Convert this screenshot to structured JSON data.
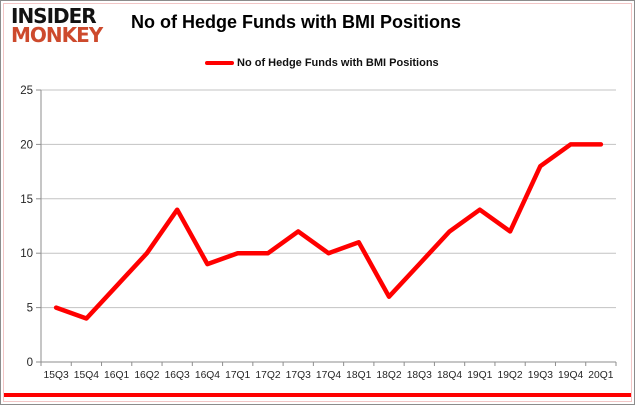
{
  "logo": {
    "line1": "INSIDER",
    "line2": "MONKEY"
  },
  "header": {
    "title": "No of Hedge Funds with BMI Positions"
  },
  "legend": {
    "label": "No of Hedge Funds with BMI Positions"
  },
  "colors": {
    "series_red": "#ff0000",
    "logo_black": "#121212",
    "logo_red": "#cd4a2d",
    "gridline": "#c3c3c3",
    "axis": "#8e8e8e",
    "tick_label": "#262626",
    "frame_pink": "#f2c6c6",
    "frame_gray": "#8c8c8c",
    "bottom_rule": "#fe0000"
  },
  "chart_data": {
    "type": "line",
    "title": "No of Hedge Funds with BMI Positions",
    "series_name": "No of Hedge Funds with BMI Positions",
    "categories": [
      "15Q3",
      "15Q4",
      "16Q1",
      "16Q2",
      "16Q3",
      "16Q4",
      "17Q1",
      "17Q2",
      "17Q3",
      "17Q4",
      "18Q1",
      "18Q2",
      "18Q3",
      "18Q4",
      "19Q1",
      "19Q2",
      "19Q3",
      "19Q4",
      "20Q1"
    ],
    "values": [
      5,
      4,
      7,
      10,
      14,
      9,
      10,
      10,
      12,
      10,
      11,
      6,
      9,
      12,
      14,
      12,
      18,
      20,
      20
    ],
    "ylim": [
      0,
      25
    ],
    "yticks": [
      0,
      5,
      10,
      15,
      20,
      25
    ],
    "grid": true,
    "legend_position": "top",
    "line_color": "#ff0000"
  }
}
